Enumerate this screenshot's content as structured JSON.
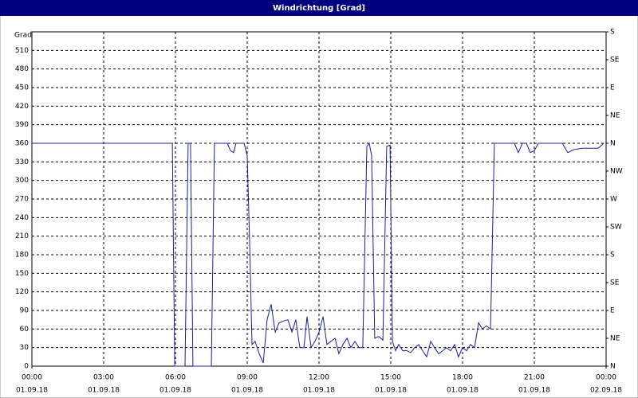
{
  "chart_data": {
    "type": "line",
    "title": "Windrichtung [Grad]",
    "ylabel": "Grad",
    "x": [
      0,
      5.87,
      5.97,
      6.4,
      6.53,
      6.63,
      6.73,
      7.5,
      7.63,
      8.17,
      8.3,
      8.43,
      8.53,
      8.87,
      9.0,
      9.1,
      9.2,
      9.33,
      9.5,
      9.67,
      9.83,
      10.0,
      10.17,
      10.33,
      10.53,
      10.7,
      10.87,
      11.03,
      11.2,
      11.37,
      11.5,
      11.67,
      11.83,
      12.0,
      12.17,
      12.33,
      12.5,
      12.67,
      12.83,
      13.0,
      13.17,
      13.33,
      13.5,
      13.67,
      13.83,
      14.0,
      14.1,
      14.2,
      14.33,
      14.5,
      14.67,
      14.83,
      14.97,
      15.07,
      15.2,
      15.33,
      15.5,
      15.67,
      15.83,
      16.0,
      16.17,
      16.33,
      16.5,
      16.67,
      16.83,
      17.0,
      17.17,
      17.33,
      17.5,
      17.67,
      17.83,
      18.0,
      18.17,
      18.33,
      18.5,
      18.67,
      18.83,
      19.0,
      19.17,
      19.33,
      20.17,
      20.33,
      20.5,
      20.67,
      20.83,
      21.0,
      21.17,
      22.17,
      22.4,
      22.67,
      23.0,
      23.67,
      23.9
    ],
    "series": [
      {
        "color": "#1c1ca0",
        "values": [
          360,
          360,
          0,
          0,
          360,
          360,
          0,
          0,
          360,
          360,
          348,
          345,
          360,
          360,
          340,
          200,
          35,
          40,
          20,
          5,
          75,
          100,
          55,
          70,
          73,
          75,
          55,
          75,
          30,
          30,
          80,
          30,
          40,
          55,
          80,
          35,
          40,
          45,
          20,
          35,
          45,
          30,
          40,
          30,
          30,
          355,
          360,
          340,
          45,
          48,
          42,
          355,
          357,
          40,
          25,
          35,
          25,
          25,
          22,
          30,
          35,
          25,
          15,
          40,
          30,
          20,
          25,
          30,
          25,
          35,
          15,
          30,
          25,
          35,
          30,
          70,
          60,
          65,
          60,
          360,
          360,
          345,
          360,
          360,
          345,
          348,
          360,
          360,
          345,
          350,
          352,
          352,
          360
        ]
      }
    ],
    "xlim": [
      0,
      24
    ],
    "xticks": [
      {
        "value": 0,
        "label": "00:00"
      },
      {
        "value": 3,
        "label": "03:00"
      },
      {
        "value": 6,
        "label": "06:00"
      },
      {
        "value": 9,
        "label": "09:00"
      },
      {
        "value": 12,
        "label": "12:00"
      },
      {
        "value": 15,
        "label": "15:00"
      },
      {
        "value": 18,
        "label": "18:00"
      },
      {
        "value": 21,
        "label": "21:00"
      },
      {
        "value": 24,
        "label": "00:00"
      }
    ],
    "xtick_dates": [
      "01.09.18",
      "01.09.18",
      "01.09.18",
      "01.09.18",
      "01.09.18",
      "01.09.18",
      "01.09.18",
      "01.09.18",
      "02.09.18"
    ],
    "ylim": [
      0,
      540
    ],
    "yticks": [
      0,
      30,
      60,
      90,
      120,
      150,
      180,
      210,
      240,
      270,
      300,
      330,
      360,
      390,
      420,
      450,
      480,
      510
    ],
    "y2lim": [
      0,
      540
    ],
    "y2ticks": [
      {
        "value": 0,
        "label": "N"
      },
      {
        "value": 45,
        "label": "NE"
      },
      {
        "value": 90,
        "label": "E"
      },
      {
        "value": 135,
        "label": "SE"
      },
      {
        "value": 180,
        "label": "S"
      },
      {
        "value": 225,
        "label": "SW"
      },
      {
        "value": 270,
        "label": "W"
      },
      {
        "value": 315,
        "label": "NW"
      },
      {
        "value": 360,
        "label": "N"
      },
      {
        "value": 405,
        "label": "NE"
      },
      {
        "value": 450,
        "label": "E"
      },
      {
        "value": 495,
        "label": "SE"
      },
      {
        "value": 540,
        "label": "S"
      }
    ],
    "grid": true
  }
}
